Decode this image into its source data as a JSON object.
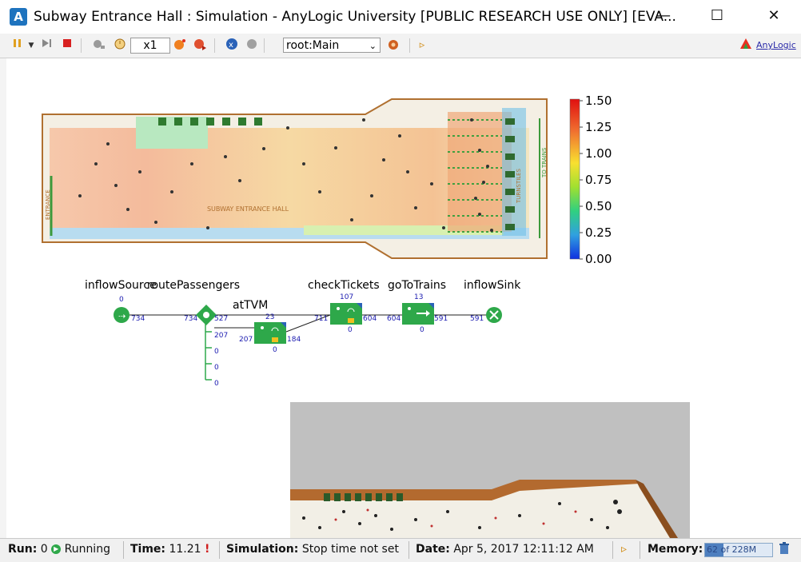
{
  "window": {
    "title": "Subway Entrance Hall : Simulation - AnyLogic University  [PUBLIC RESEARCH USE ONLY] [EVA...",
    "minimize": "—",
    "maximize": "☐",
    "close": "✕"
  },
  "toolbar": {
    "speed": "x1",
    "experiment": "root:Main",
    "brand": "AnyLogic"
  },
  "hall": {
    "label": "SUBWAY ENTRANCE HALL",
    "entrance": "ENTRANCE",
    "turnstiles": "TURNSTILES",
    "to_trains": "TO TRAINS"
  },
  "legend": {
    "ticks": [
      "1.50",
      "1.25",
      "1.00",
      "0.75",
      "0.50",
      "0.25",
      "0.00"
    ]
  },
  "flowchart": {
    "blocks": [
      {
        "name": "inflowSource"
      },
      {
        "name": "routePassengers"
      },
      {
        "name": "atTVM"
      },
      {
        "name": "checkTickets"
      },
      {
        "name": "goToTrains"
      },
      {
        "name": "inflowSink"
      }
    ],
    "counts": {
      "source_top": "0",
      "source_out": "734",
      "route_in": "734",
      "route_out1": "527",
      "route_out2": "207",
      "route_out3": "0",
      "route_out4": "0",
      "route_out5": "0",
      "tvm_top": "23",
      "tvm_in": "207",
      "tvm_out": "184",
      "tvm_bottom": "0",
      "check_top": "107",
      "check_in": "711",
      "check_out": "604",
      "check_bottom": "0",
      "go_top": "13",
      "go_in": "604",
      "go_out": "591",
      "go_bottom": "0",
      "sink_in": "591"
    }
  },
  "status": {
    "run_label": "Run:",
    "run_value": "0",
    "run_state": "Running",
    "time_label": "Time:",
    "time_value": "11.21",
    "sim_label": "Simulation:",
    "sim_value": "Stop time not set",
    "date_label": "Date:",
    "date_value": "Apr 5, 2017 12:11:12 AM",
    "memory_label": "Memory:",
    "memory_value": "62 of 228M",
    "memory_fraction": 0.27
  },
  "colors": {
    "accent": "#1e73be",
    "flow_green": "#2ea84a",
    "hall_border": "#b07030",
    "count_blue": "#1a1ab0"
  }
}
